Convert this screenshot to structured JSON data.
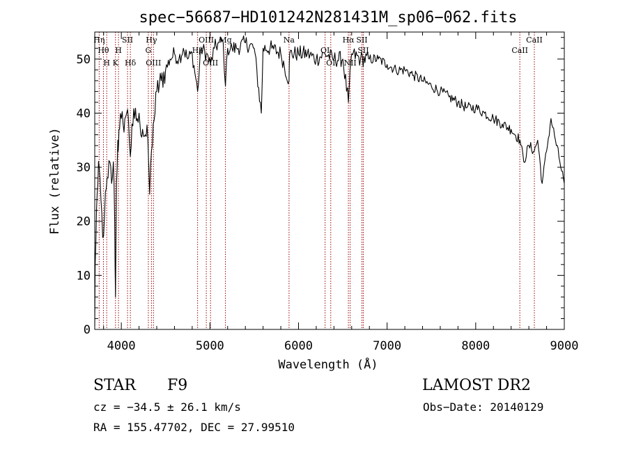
{
  "chart_data": {
    "type": "line",
    "title": "spec−56687−HD101242N281431M_sp06−062.fits",
    "xlabel": "Wavelength (Å)",
    "ylabel": "Flux (relative)",
    "xlim": [
      3700,
      9000
    ],
    "ylim": [
      0,
      55
    ],
    "xticks": [
      4000,
      5000,
      6000,
      7000,
      8000,
      9000
    ],
    "yticks": [
      0,
      10,
      20,
      30,
      40,
      50
    ],
    "grid": false,
    "legend": "none",
    "line_color": "#000000",
    "marker_color": "#990000",
    "series": [
      {
        "x": [
          3700,
          3705,
          3720,
          3735,
          3750,
          3770,
          3790,
          3810,
          3830,
          3850,
          3870,
          3890,
          3910,
          3925,
          3934,
          3945,
          3960,
          3968,
          3980,
          4000,
          4020,
          4040,
          4060,
          4080,
          4102,
          4120,
          4150,
          4180,
          4210,
          4240,
          4270,
          4300,
          4320,
          4340,
          4360,
          4380,
          4400,
          4450,
          4500,
          4550,
          4600,
          4650,
          4700,
          4750,
          4800,
          4861,
          4900,
          4960,
          5007,
          5050,
          5100,
          5150,
          5175,
          5200,
          5250,
          5300,
          5400,
          5500,
          5580,
          5600,
          5700,
          5800,
          5893,
          5900,
          6000,
          6100,
          6200,
          6300,
          6400,
          6500,
          6563,
          6600,
          6700,
          6800,
          6900,
          7000,
          7100,
          7200,
          7300,
          7400,
          7500,
          7600,
          7700,
          7800,
          7900,
          8000,
          8100,
          8200,
          8300,
          8400,
          8500,
          8542,
          8600,
          8662,
          8700,
          8750,
          8800,
          8850,
          8900,
          8950,
          9000
        ],
        "values": [
          0.5,
          12,
          22,
          27,
          30,
          24,
          17,
          21,
          26,
          28,
          31,
          27,
          31,
          20,
          6,
          27,
          35,
          34,
          37,
          39,
          38,
          39,
          40,
          39,
          32,
          38,
          39,
          39,
          38,
          37,
          36,
          35,
          25,
          33,
          38,
          40,
          44,
          46,
          48,
          50,
          51,
          50,
          52,
          50,
          51,
          44,
          52,
          51,
          49,
          52,
          53,
          53,
          45,
          52,
          52,
          52,
          53,
          52,
          40,
          52,
          52,
          51,
          46,
          51,
          51,
          51,
          50,
          51,
          50,
          50,
          42,
          51,
          50,
          50,
          50,
          49,
          48,
          48,
          47,
          46,
          45,
          44,
          43,
          42,
          41,
          41,
          40,
          39,
          38,
          37,
          35,
          31,
          34,
          33,
          35,
          27,
          33,
          39,
          35,
          31,
          27
        ]
      }
    ],
    "lines": [
      {
        "x": 3750,
        "label": "Hη",
        "row": 1
      },
      {
        "x": 3798,
        "label": "Hθ",
        "row": 2
      },
      {
        "x": 3835,
        "label": "H",
        "row": 3
      },
      {
        "x": 3934,
        "label": "K",
        "row": 3
      },
      {
        "x": 3968,
        "label": "H",
        "row": 2
      },
      {
        "x": 4070,
        "label": "SII",
        "row": 1
      },
      {
        "x": 4102,
        "label": "Hδ",
        "row": 3
      },
      {
        "x": 4305,
        "label": "G",
        "row": 2
      },
      {
        "x": 4340,
        "label": "Hγ",
        "row": 1
      },
      {
        "x": 4363,
        "label": "OIII",
        "row": 3
      },
      {
        "x": 4861,
        "label": "Hβ",
        "row": 2
      },
      {
        "x": 4959,
        "label": "OIII",
        "row": 1
      },
      {
        "x": 5007,
        "label": "OIII",
        "row": 3
      },
      {
        "x": 5175,
        "label": "Mg",
        "row": 1
      },
      {
        "x": 5893,
        "label": "Na",
        "row": 1
      },
      {
        "x": 6300,
        "label": "OI",
        "row": 2
      },
      {
        "x": 6364,
        "label": "OI",
        "row": 3
      },
      {
        "x": 6563,
        "label": "Hα",
        "row": 1
      },
      {
        "x": 6583,
        "label": "NII",
        "row": 3
      },
      {
        "x": 6716,
        "label": "SII",
        "row": 1
      },
      {
        "x": 6731,
        "label": "SII",
        "row": 2
      },
      {
        "x": 8498,
        "label": "CaII",
        "row": 2
      },
      {
        "x": 8662,
        "label": "CaII",
        "row": 1
      }
    ]
  },
  "info": {
    "class_label": "STAR",
    "subclass": "F9",
    "survey": "LAMOST DR2",
    "redshift_text": "cz = −34.5 ± 26.1 km/s",
    "obs_date_text": "Obs−Date: 20140129",
    "coords_text": "RA = 155.47702, DEC =  27.99510"
  }
}
